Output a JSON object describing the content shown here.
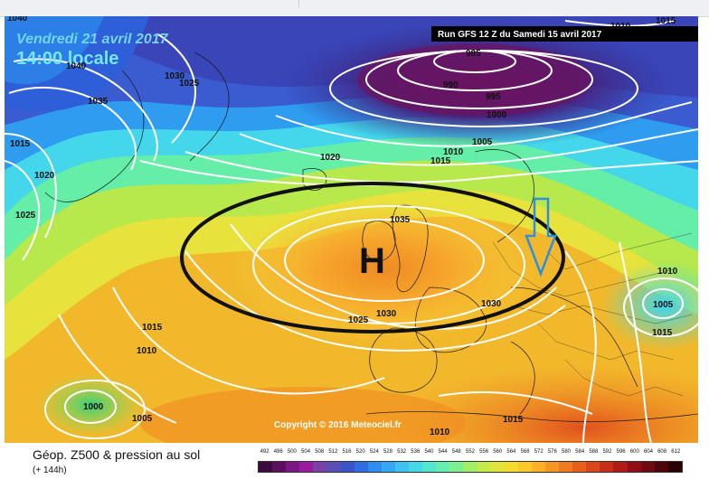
{
  "map": {
    "date_line1": "Vendredi 21 avril 2017",
    "date_line2": "14:00 locale",
    "run_label": "Run GFS 12 Z du Samedi 15 avril 2017",
    "copyright": "Copyright © 2016 Meteociel.fr",
    "high_marker": "H",
    "isobar_labels": [
      {
        "id": "1040-nw",
        "text": "1040"
      },
      {
        "id": "1040-greenland",
        "text": "1040"
      },
      {
        "id": "1035-west",
        "text": "1035"
      },
      {
        "id": "1030-greenland",
        "text": "1030"
      },
      {
        "id": "1025-greenland",
        "text": "1025"
      },
      {
        "id": "1015-west",
        "text": "1015"
      },
      {
        "id": "1020-west",
        "text": "1020"
      },
      {
        "id": "1025-west",
        "text": "1025"
      },
      {
        "id": "985",
        "text": "985"
      },
      {
        "id": "990",
        "text": "990"
      },
      {
        "id": "995",
        "text": "995"
      },
      {
        "id": "1000-north",
        "text": "1000"
      },
      {
        "id": "1005-north",
        "text": "1005"
      },
      {
        "id": "1010-north",
        "text": "1010"
      },
      {
        "id": "1015-north",
        "text": "1015"
      },
      {
        "id": "1020-mid",
        "text": "1020"
      },
      {
        "id": "1035-uk",
        "text": "1035"
      },
      {
        "id": "1030-central",
        "text": "1030"
      },
      {
        "id": "1030-europe",
        "text": "1030"
      },
      {
        "id": "1025-south",
        "text": "1025"
      },
      {
        "id": "1015-atlantic",
        "text": "1015"
      },
      {
        "id": "1010-atlantic",
        "text": "1010"
      },
      {
        "id": "1000-low",
        "text": "1000"
      },
      {
        "id": "1005-low",
        "text": "1005"
      },
      {
        "id": "1010-east",
        "text": "1010"
      },
      {
        "id": "1005-east",
        "text": "1005"
      },
      {
        "id": "1015-east",
        "text": "1015"
      },
      {
        "id": "1015-med",
        "text": "1015"
      },
      {
        "id": "1010-south",
        "text": "1010"
      },
      {
        "id": "1015-ne",
        "text": "1015"
      },
      {
        "id": "1010-ne",
        "text": "1010"
      }
    ]
  },
  "legend": {
    "title": "Géop. Z500 & pression au sol",
    "subtitle": "(+ 144h)",
    "scale_values": [
      "492",
      "496",
      "500",
      "504",
      "508",
      "512",
      "516",
      "520",
      "524",
      "528",
      "532",
      "536",
      "540",
      "544",
      "548",
      "552",
      "556",
      "560",
      "564",
      "568",
      "572",
      "576",
      "580",
      "584",
      "588",
      "592",
      "596",
      "600",
      "604",
      "608",
      "612"
    ],
    "scale_colors": [
      "#3d0a3d",
      "#5c0f60",
      "#7c1585",
      "#9a1aa0",
      "#7b3fa8",
      "#5a4fb6",
      "#3a55c8",
      "#2f6ee0",
      "#2f8df0",
      "#35a7f5",
      "#3dc2f2",
      "#46d8e8",
      "#55e6cf",
      "#66eeb0",
      "#7cf08c",
      "#a2ee68",
      "#c5ea4a",
      "#e3e43a",
      "#f5da30",
      "#fcc82a",
      "#fbb026",
      "#f69624",
      "#ef7b20",
      "#e6601c",
      "#d9461a",
      "#c72f18",
      "#ae1c16",
      "#8f0f14",
      "#6e0a10",
      "#4d050b",
      "#2a0205"
    ]
  }
}
